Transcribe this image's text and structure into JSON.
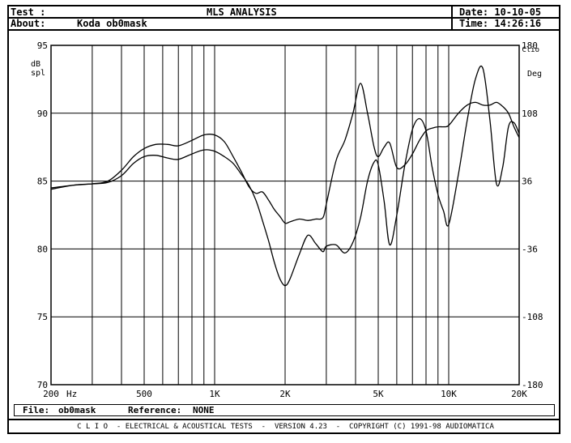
{
  "header": {
    "test_label": "Test :",
    "analysis_title": "MLS ANALYSIS",
    "date": "Date: 10-10-05",
    "about_label": "About:",
    "about_value": "Koda ob0mask",
    "time": "Time: 14:26:16"
  },
  "footer": {
    "file_label": "File:",
    "file_value": "ob0mask",
    "reference_label": "Reference:",
    "reference_value": "NONE",
    "copyright": "C L I O  - ELECTRICAL & ACOUSTICAL TESTS  -  VERSION 4.23  -  COPYRIGHT (C) 1991-98 AUDIOMATICA"
  },
  "chart_data": {
    "type": "line",
    "title": "MLS ANALYSIS",
    "xlabel": "Hz",
    "ylabel": "dB spl",
    "y2label": "Deg",
    "brand_mark": "Clio",
    "x_scale": "log",
    "xlim": [
      200,
      20000
    ],
    "ylim": [
      70,
      95
    ],
    "y2lim": [
      -180,
      180
    ],
    "x_tick_labels": [
      {
        "value": 200,
        "label": "200"
      },
      {
        "value": 500,
        "label": "500"
      },
      {
        "value": 1000,
        "label": "1K"
      },
      {
        "value": 2000,
        "label": "2K"
      },
      {
        "value": 5000,
        "label": "5K"
      },
      {
        "value": 10000,
        "label": "10K"
      },
      {
        "value": 20000,
        "label": "20K"
      }
    ],
    "y_ticks": [
      70,
      75,
      80,
      85,
      90,
      95
    ],
    "y2_ticks": [
      -180,
      -108,
      -36,
      36,
      108,
      180
    ],
    "grid": true,
    "series": [
      {
        "x": [
          200,
          250,
          300,
          350,
          400,
          450,
          500,
          560,
          630,
          700,
          800,
          900,
          1000,
          1100,
          1200,
          1300,
          1400,
          1500,
          1600,
          1700,
          1800,
          1900,
          2000,
          2100,
          2300,
          2500,
          2700,
          2900,
          3000,
          3300,
          3600,
          3900,
          4200,
          4500,
          4800,
          5000,
          5300,
          5600,
          6000,
          6500,
          7000,
          7500,
          8000,
          8500,
          9000,
          9500,
          10000,
          11000,
          12000,
          13000,
          14000,
          15000,
          16000,
          17000,
          18000,
          19000,
          20000
        ],
        "y": [
          84.4,
          84.7,
          84.8,
          84.9,
          85.4,
          86.3,
          86.8,
          86.9,
          86.7,
          86.6,
          87.0,
          87.3,
          87.2,
          86.8,
          86.3,
          85.5,
          84.7,
          83.6,
          82.1,
          80.6,
          79.0,
          77.8,
          77.3,
          77.8,
          79.6,
          81.0,
          80.4,
          79.8,
          80.2,
          80.3,
          79.7,
          80.5,
          82.3,
          85.0,
          86.4,
          86.2,
          83.5,
          80.3,
          82.5,
          86.2,
          88.8,
          89.6,
          88.7,
          86.0,
          84.0,
          82.8,
          81.8,
          85.5,
          89.5,
          92.5,
          93.3,
          89.5,
          84.8,
          86.0,
          89.0,
          89.3,
          88.5
        ]
      },
      {
        "x": [
          200,
          250,
          300,
          350,
          400,
          450,
          500,
          560,
          630,
          700,
          800,
          900,
          1000,
          1100,
          1200,
          1300,
          1400,
          1500,
          1600,
          1700,
          1800,
          1900,
          2000,
          2100,
          2300,
          2500,
          2700,
          2900,
          3000,
          3300,
          3600,
          3900,
          4200,
          4500,
          4800,
          5000,
          5300,
          5600,
          6000,
          6500,
          7000,
          7500,
          8000,
          8500,
          9000,
          9500,
          10000,
          11000,
          12000,
          13000,
          14000,
          15000,
          16000,
          17000,
          18000,
          19000,
          20000
        ],
        "y": [
          84.5,
          84.7,
          84.8,
          85.0,
          85.8,
          86.8,
          87.4,
          87.7,
          87.7,
          87.6,
          88.0,
          88.4,
          88.4,
          87.9,
          86.8,
          85.7,
          84.6,
          84.1,
          84.2,
          83.6,
          82.9,
          82.4,
          81.9,
          82.0,
          82.2,
          82.1,
          82.2,
          82.3,
          83.3,
          86.5,
          88.0,
          90.0,
          92.2,
          90.0,
          87.5,
          86.8,
          87.5,
          87.8,
          86.0,
          86.2,
          87.0,
          88.0,
          88.7,
          88.9,
          89.0,
          89.0,
          89.1,
          90.0,
          90.6,
          90.8,
          90.6,
          90.6,
          90.8,
          90.5,
          90.0,
          89.0,
          88.2
        ]
      }
    ]
  }
}
